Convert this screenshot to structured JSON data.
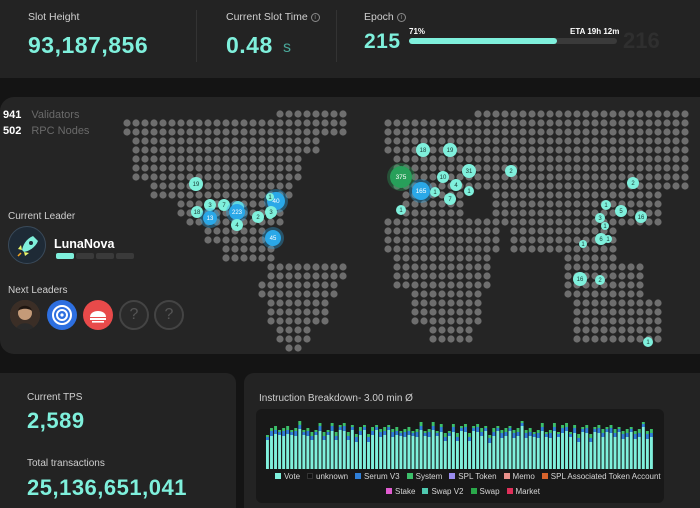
{
  "stats": {
    "slot_height": {
      "label": "Slot Height",
      "value": "93,187,856"
    },
    "slot_time": {
      "label": "Current Slot Time",
      "value": "0.48",
      "unit": "s"
    },
    "epoch": {
      "label": "Epoch",
      "current": "215",
      "percent_label": "71%",
      "progress": 0.71,
      "eta": "ETA 19h 12m",
      "next": "216"
    }
  },
  "network": {
    "validators": {
      "count": "941",
      "label": "Validators"
    },
    "rpc_nodes": {
      "count": "502",
      "label": "RPC Nodes"
    }
  },
  "current_leader": {
    "label": "Current Leader",
    "name": "LunaNova"
  },
  "next_leaders": {
    "label": "Next Leaders",
    "unknown_glyph": "?"
  },
  "map_clusters": [
    {
      "label": "19"
    },
    {
      "label": "3"
    },
    {
      "label": "7"
    },
    {
      "label": "4"
    },
    {
      "label": "18"
    },
    {
      "label": "13"
    },
    {
      "label": "223"
    },
    {
      "label": "4"
    },
    {
      "label": "2"
    },
    {
      "label": "1"
    },
    {
      "label": "40"
    },
    {
      "label": "3"
    },
    {
      "label": "45"
    },
    {
      "label": "1"
    },
    {
      "label": "18"
    },
    {
      "label": "19"
    },
    {
      "label": "375"
    },
    {
      "label": "165"
    },
    {
      "label": "10"
    },
    {
      "label": "4"
    },
    {
      "label": "31"
    },
    {
      "label": "1"
    },
    {
      "label": "7"
    },
    {
      "label": "1"
    },
    {
      "label": "2"
    },
    {
      "label": "1"
    },
    {
      "label": "2"
    },
    {
      "label": "1"
    },
    {
      "label": "5"
    },
    {
      "label": "16"
    },
    {
      "label": "3"
    },
    {
      "label": "1"
    },
    {
      "label": "6"
    },
    {
      "label": "1"
    },
    {
      "label": "1"
    },
    {
      "label": "16"
    },
    {
      "label": "2"
    },
    {
      "label": "1"
    }
  ],
  "tps": {
    "label": "Current TPS",
    "value": "2,589"
  },
  "transactions": {
    "label": "Total transactions",
    "value": "25,136,651,041"
  },
  "instruction_breakdown": {
    "title": "Instruction Breakdown- 3.00 min Ø",
    "legend_row1": [
      {
        "name": "Vote",
        "color": "#7ff0dc"
      },
      {
        "name": "unknown",
        "color": "#111111"
      },
      {
        "name": "Serum V3",
        "color": "#2f7fd8"
      },
      {
        "name": "System",
        "color": "#3cbf6a"
      },
      {
        "name": "SPL Token",
        "color": "#9a8cf0"
      },
      {
        "name": "Memo",
        "color": "#e8908a"
      },
      {
        "name": "SPL Associated Token Account",
        "color": "#d8642c"
      }
    ],
    "legend_row2": [
      {
        "name": "Stake",
        "color": "#e05cd0"
      },
      {
        "name": "Swap V2",
        "color": "#4fc9b0"
      },
      {
        "name": "Swap",
        "color": "#2aa84a"
      },
      {
        "name": "Market",
        "color": "#e0305a"
      }
    ]
  },
  "colors": {
    "accent": "#7ff0dc",
    "panel": "#232323",
    "background": "#141414"
  }
}
